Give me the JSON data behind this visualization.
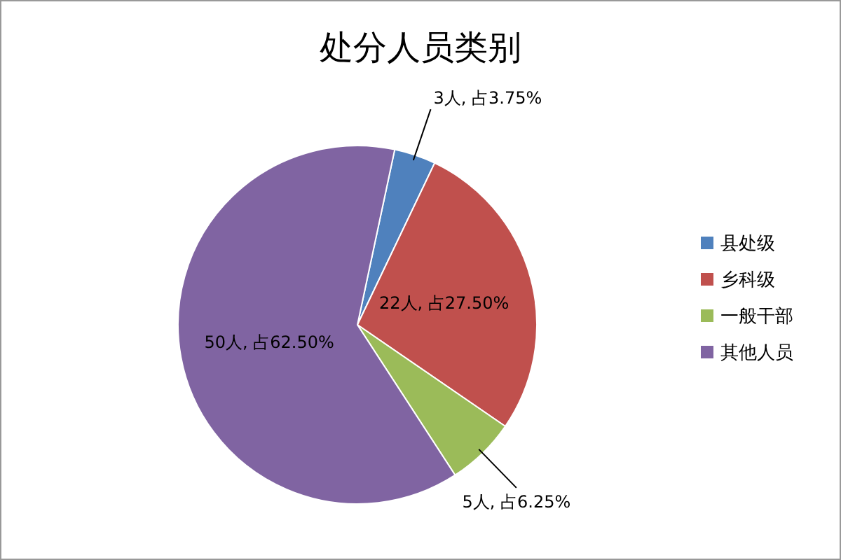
{
  "chart_data": {
    "type": "pie",
    "title": "处分人员类别",
    "categories": [
      "县处级",
      "乡科级",
      "一般干部",
      "其他人员"
    ],
    "values": [
      3,
      22,
      5,
      50
    ],
    "colors": [
      "#4f81bd",
      "#c0504d",
      "#9bbb59",
      "#8064a2"
    ],
    "value_labels": [
      "3人, 占3.75%",
      "22人, 占27.50%",
      "5人, 占6.25%",
      "50人, 占62.50%"
    ],
    "legend": "right"
  }
}
